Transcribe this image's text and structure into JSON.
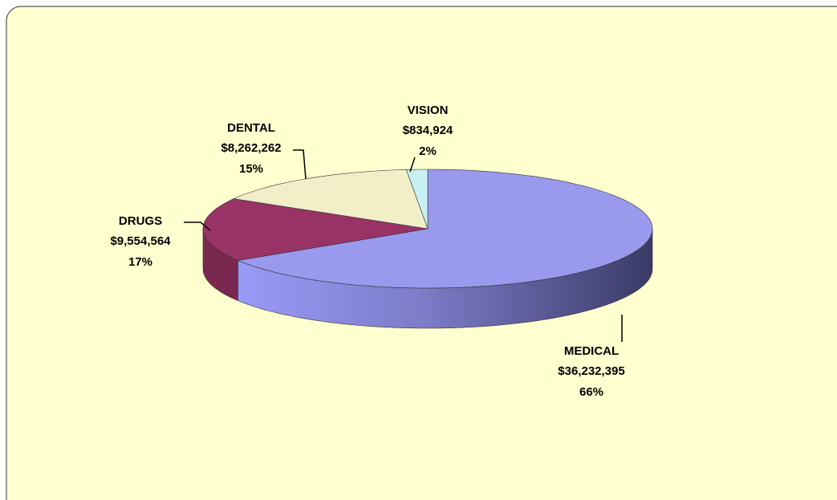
{
  "chart_data": {
    "type": "pie3d",
    "categories": [
      "MEDICAL",
      "DRUGS",
      "DENTAL",
      "VISION"
    ],
    "values": [
      36232395,
      9554564,
      8262262,
      834924
    ],
    "value_labels": [
      "$36,232,395",
      "$9,554,564",
      "$8,262,262",
      "$834,924"
    ],
    "percent_labels": [
      "66%",
      "17%",
      "15%",
      "2%"
    ],
    "colors": [
      "#9999ee",
      "#993366",
      "#f2eec8",
      "#c8f0f0"
    ],
    "side_colors": [
      "#8888dd",
      "#7a2850",
      "#cfcaa6",
      "#a8d0d0"
    ],
    "start_angle": 0,
    "direction": "clockwise"
  }
}
